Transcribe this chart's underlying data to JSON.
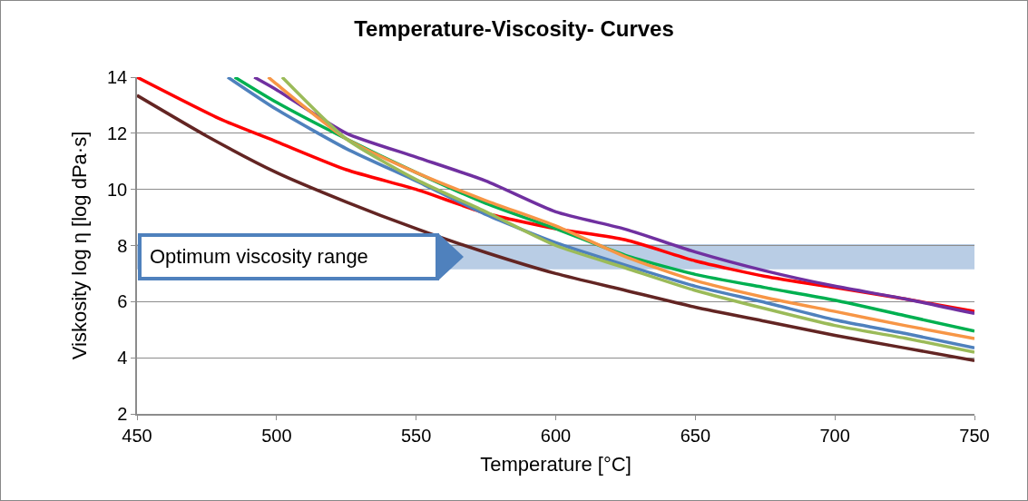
{
  "chart_data": {
    "type": "line",
    "title": "Temperature-Viscosity- Curves",
    "xlabel": "Temperature [°C]",
    "ylabel": "Viskosity log η [log dPa·s]",
    "xlim": [
      450,
      750
    ],
    "xticks": [
      450,
      500,
      550,
      600,
      650,
      700,
      750
    ],
    "ylim": [
      2,
      14
    ],
    "yticks": [
      2,
      4,
      6,
      8,
      10,
      12,
      14
    ],
    "grid": "y",
    "line_style": "solid",
    "marker": "none",
    "bands": [
      {
        "axis": "y",
        "from": 7.15,
        "to": 8.05,
        "label": "Optimum viscosity range",
        "color": "#b9cde5"
      }
    ],
    "series": [
      {
        "color": "#632523",
        "x": [
          450,
          475,
          500,
          525,
          550,
          575,
          600,
          625,
          650,
          675,
          700,
          725,
          750
        ],
        "values": [
          13.35,
          11.9,
          10.6,
          9.55,
          8.6,
          7.75,
          7.0,
          6.4,
          5.8,
          5.3,
          4.8,
          4.35,
          3.9
        ]
      },
      {
        "color": "#ff0000",
        "x": [
          450,
          480,
          500,
          525,
          550,
          575,
          600,
          625,
          650,
          675,
          700,
          725,
          750
        ],
        "values": [
          14.0,
          12.5,
          11.7,
          10.7,
          10.0,
          9.15,
          8.6,
          8.2,
          7.45,
          6.9,
          6.5,
          6.1,
          5.65
        ]
      },
      {
        "color": "#7030a0",
        "x": [
          492,
          500,
          525,
          550,
          575,
          600,
          625,
          650,
          675,
          700,
          725,
          750
        ],
        "values": [
          14.0,
          13.55,
          12.0,
          11.15,
          10.3,
          9.2,
          8.58,
          7.77,
          7.1,
          6.55,
          6.1,
          5.58
        ]
      },
      {
        "color": "#4f81bd",
        "x": [
          482.5,
          500,
          525,
          550,
          575,
          600,
          625,
          650,
          675,
          700,
          725,
          750
        ],
        "values": [
          14.0,
          12.85,
          11.45,
          10.3,
          9.1,
          8.1,
          7.3,
          6.55,
          5.97,
          5.35,
          4.87,
          4.35
        ]
      },
      {
        "color": "#00b050",
        "x": [
          485,
          500,
          525,
          550,
          575,
          600,
          625,
          650,
          675,
          700,
          725,
          750
        ],
        "values": [
          14.0,
          13.1,
          11.8,
          10.6,
          9.5,
          8.6,
          7.65,
          6.97,
          6.5,
          6.05,
          5.5,
          4.95
        ]
      },
      {
        "color": "#f79646",
        "x": [
          497,
          500,
          525,
          550,
          575,
          600,
          625,
          650,
          675,
          700,
          725,
          750
        ],
        "values": [
          14.0,
          13.75,
          11.8,
          10.6,
          9.6,
          8.7,
          7.6,
          6.75,
          6.15,
          5.65,
          5.15,
          4.68
        ]
      },
      {
        "color": "#9bbb59",
        "x": [
          502,
          525,
          550,
          575,
          600,
          625,
          650,
          675,
          700,
          725,
          750
        ],
        "values": [
          14.0,
          11.8,
          10.35,
          9.2,
          8.0,
          7.2,
          6.4,
          5.75,
          5.15,
          4.7,
          4.2
        ]
      }
    ]
  }
}
